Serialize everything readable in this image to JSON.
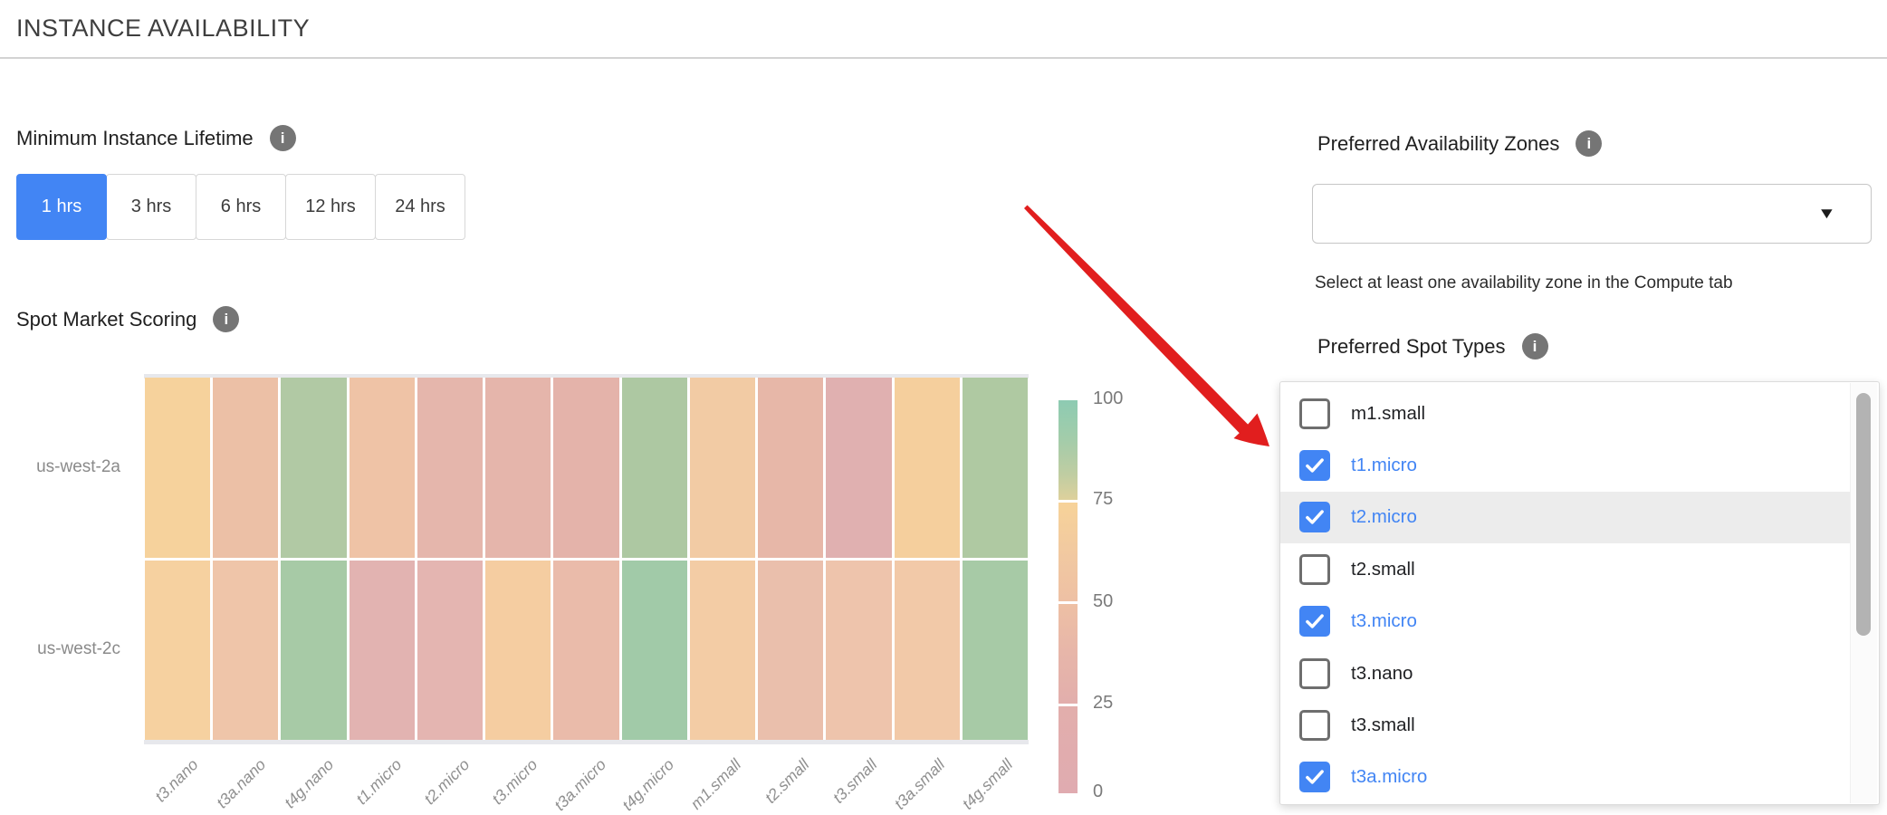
{
  "header": {
    "title": "INSTANCE AVAILABILITY"
  },
  "lifetime": {
    "label": "Minimum Instance Lifetime",
    "options": [
      "1 hrs",
      "3 hrs",
      "6 hrs",
      "12 hrs",
      "24 hrs"
    ],
    "selected": "1 hrs"
  },
  "spot_market": {
    "label": "Spot Market Scoring"
  },
  "chart_data": {
    "type": "heatmap",
    "title": "Spot Market Scoring",
    "x_categories": [
      "t3.nano",
      "t3a.nano",
      "t4g.nano",
      "t1.micro",
      "t2.micro",
      "t3.micro",
      "t3a.micro",
      "t4g.micro",
      "m1.small",
      "t2.small",
      "t3.small",
      "t3a.small",
      "t4g.small"
    ],
    "y_categories": [
      "us-west-2a",
      "us-west-2c"
    ],
    "series": [
      {
        "name": "us-west-2a",
        "values": [
          71,
          46,
          85,
          53,
          33,
          33,
          31,
          86,
          60,
          35,
          22,
          70,
          85
        ],
        "colors": [
          "#f6d29c",
          "#ecc0a6",
          "#b1c9a4",
          "#efc3a6",
          "#e5b6ac",
          "#e5b5ab",
          "#e4b3aa",
          "#adc8a2",
          "#f2cba4",
          "#e7b7a8",
          "#e0b0b0",
          "#f5cf9d",
          "#afc9a2"
        ]
      },
      {
        "name": "us-west-2c",
        "values": [
          69,
          51,
          88,
          22,
          25,
          66,
          40,
          90,
          61,
          43,
          50,
          55,
          88
        ],
        "colors": [
          "#f6d1a0",
          "#efc5a9",
          "#a7caa6",
          "#e2b3b1",
          "#e4b5b1",
          "#f5cda1",
          "#eabbaa",
          "#a1caa8",
          "#f3cca5",
          "#eabfac",
          "#eec4ac",
          "#f2c9a8",
          "#a7caa6"
        ]
      }
    ],
    "colorbar": {
      "ticks": [
        100,
        75,
        50,
        25,
        0
      ],
      "min": 0,
      "max": 100,
      "position": "right"
    },
    "grid": "off",
    "x_tick_rotation": -45
  },
  "availability_zones": {
    "label": "Preferred Availability Zones",
    "select_value": "",
    "helper": "Select at least one availability zone in the Compute tab"
  },
  "spot_types": {
    "label": "Preferred Spot Types",
    "items": [
      {
        "label": "m1.small",
        "checked": false,
        "highlighted": false
      },
      {
        "label": "t1.micro",
        "checked": true,
        "highlighted": false
      },
      {
        "label": "t2.micro",
        "checked": true,
        "highlighted": true
      },
      {
        "label": "t2.small",
        "checked": false,
        "highlighted": false
      },
      {
        "label": "t3.micro",
        "checked": true,
        "highlighted": false
      },
      {
        "label": "t3.nano",
        "checked": false,
        "highlighted": false
      },
      {
        "label": "t3.small",
        "checked": false,
        "highlighted": false
      },
      {
        "label": "t3a.micro",
        "checked": true,
        "highlighted": false
      }
    ]
  },
  "icons": {
    "info": "i",
    "caret_down": "▼"
  },
  "colors": {
    "accent_blue": "#4285f4",
    "checked_label": "#4285f4",
    "arrow_red": "#e11e1e",
    "highlight_row": "#ececec"
  }
}
